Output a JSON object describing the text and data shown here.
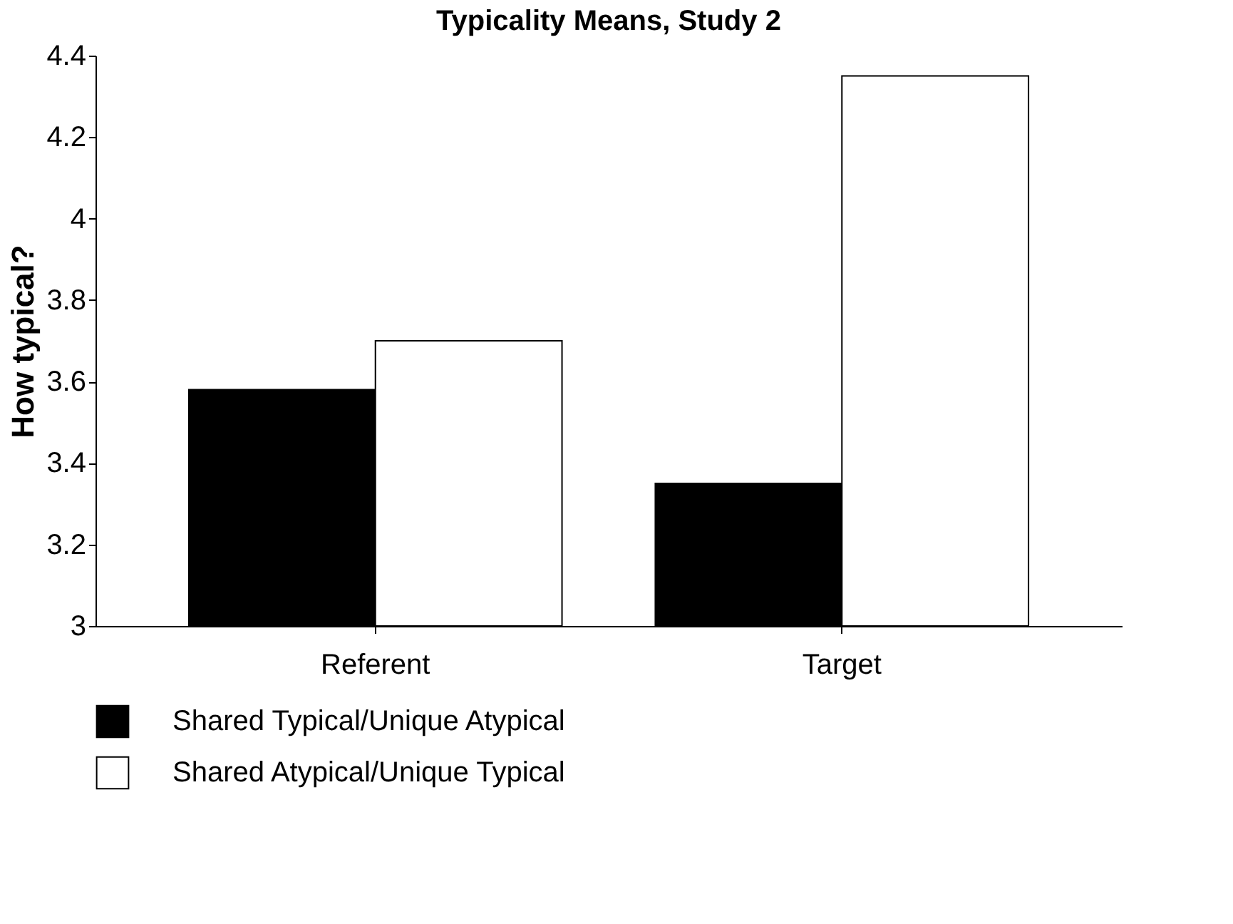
{
  "chart_data": {
    "type": "bar",
    "title": "Typicality Means, Study 2",
    "ylabel": "How typical?",
    "categories": [
      "Referent",
      "Target"
    ],
    "series": [
      {
        "name": "Shared Typical/Unique Atypical",
        "color": "#000000",
        "values": [
          3.58,
          3.35
        ]
      },
      {
        "name": "Shared Atypical/Unique Typical",
        "color": "#ffffff",
        "values": [
          3.7,
          4.35
        ]
      }
    ],
    "ylim": [
      3,
      4.4
    ],
    "yticks": [
      3,
      3.2,
      3.4,
      3.6,
      3.8,
      4,
      4.2,
      4.4
    ],
    "grid": false,
    "legend": "bottom"
  }
}
